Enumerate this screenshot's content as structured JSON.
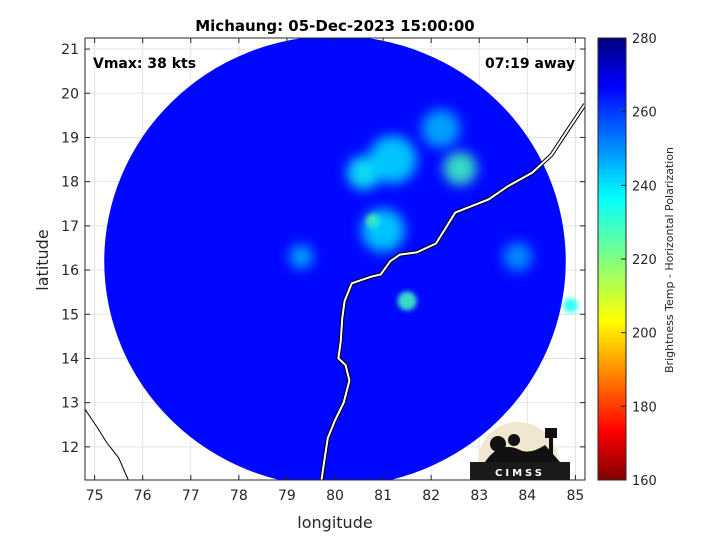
{
  "chart_data": {
    "type": "heatmap",
    "title": "Michaung: 05-Dec-2023 15:00:00",
    "xlabel": "longitude",
    "ylabel": "latitude",
    "xlim": [
      74.8,
      85.2
    ],
    "ylim": [
      11.25,
      21.25
    ],
    "xticks": [
      "75",
      "76",
      "77",
      "78",
      "79",
      "80",
      "81",
      "82",
      "83",
      "84",
      "85"
    ],
    "yticks": [
      "12",
      "13",
      "14",
      "15",
      "16",
      "17",
      "18",
      "19",
      "20",
      "21"
    ],
    "grid": true,
    "annotations": {
      "vmax": "Vmax: 38 kts",
      "time_away": "07:19 away"
    },
    "colorbar": {
      "label": "Brightness Temp - Horizontal Polarization",
      "range": [
        160,
        280
      ],
      "ticks": [
        "160",
        "180",
        "200",
        "220",
        "240",
        "260",
        "280"
      ],
      "colormap": "jet"
    },
    "swath": {
      "center_lon": 80.0,
      "center_lat": 16.2,
      "radius_lon": 4.8,
      "radius_lat": 5.1
    },
    "background_tb": 266,
    "features": [
      {
        "lon": 82.6,
        "lat": 18.3,
        "tb": 228,
        "r": 0.35
      },
      {
        "lon": 80.8,
        "lat": 17.1,
        "tb": 205,
        "r": 0.15
      },
      {
        "lon": 80.6,
        "lat": 18.2,
        "tb": 235,
        "r": 0.35
      },
      {
        "lon": 81.2,
        "lat": 18.5,
        "tb": 240,
        "r": 0.5
      },
      {
        "lon": 81.5,
        "lat": 15.3,
        "tb": 228,
        "r": 0.2
      },
      {
        "lon": 81.0,
        "lat": 16.9,
        "tb": 240,
        "r": 0.45
      },
      {
        "lon": 84.9,
        "lat": 15.2,
        "tb": 235,
        "r": 0.15
      },
      {
        "lon": 83.8,
        "lat": 16.3,
        "tb": 248,
        "r": 0.3
      },
      {
        "lon": 79.3,
        "lat": 16.3,
        "tb": 245,
        "r": 0.25
      },
      {
        "lon": 82.2,
        "lat": 19.2,
        "tb": 245,
        "r": 0.4
      }
    ],
    "coastline_east": [
      [
        79.72,
        11.25
      ],
      [
        79.78,
        11.7
      ],
      [
        79.85,
        12.2
      ],
      [
        80.0,
        12.6
      ],
      [
        80.18,
        13.0
      ],
      [
        80.3,
        13.5
      ],
      [
        80.22,
        13.85
      ],
      [
        80.07,
        14.0
      ],
      [
        80.12,
        14.4
      ],
      [
        80.15,
        14.9
      ],
      [
        80.2,
        15.3
      ],
      [
        80.35,
        15.7
      ],
      [
        80.75,
        15.85
      ],
      [
        80.95,
        15.9
      ],
      [
        81.15,
        16.2
      ],
      [
        81.35,
        16.35
      ],
      [
        81.7,
        16.4
      ],
      [
        82.1,
        16.6
      ],
      [
        82.3,
        16.95
      ],
      [
        82.5,
        17.3
      ],
      [
        83.2,
        17.6
      ],
      [
        83.6,
        17.9
      ],
      [
        84.1,
        18.2
      ],
      [
        84.5,
        18.6
      ],
      [
        84.8,
        19.1
      ],
      [
        85.2,
        19.75
      ]
    ],
    "coastline_west": [
      [
        74.8,
        12.85
      ],
      [
        75.05,
        12.45
      ],
      [
        75.25,
        12.1
      ],
      [
        75.5,
        11.75
      ],
      [
        75.7,
        11.25
      ]
    ]
  },
  "logo": {
    "text": "CIMSS"
  }
}
